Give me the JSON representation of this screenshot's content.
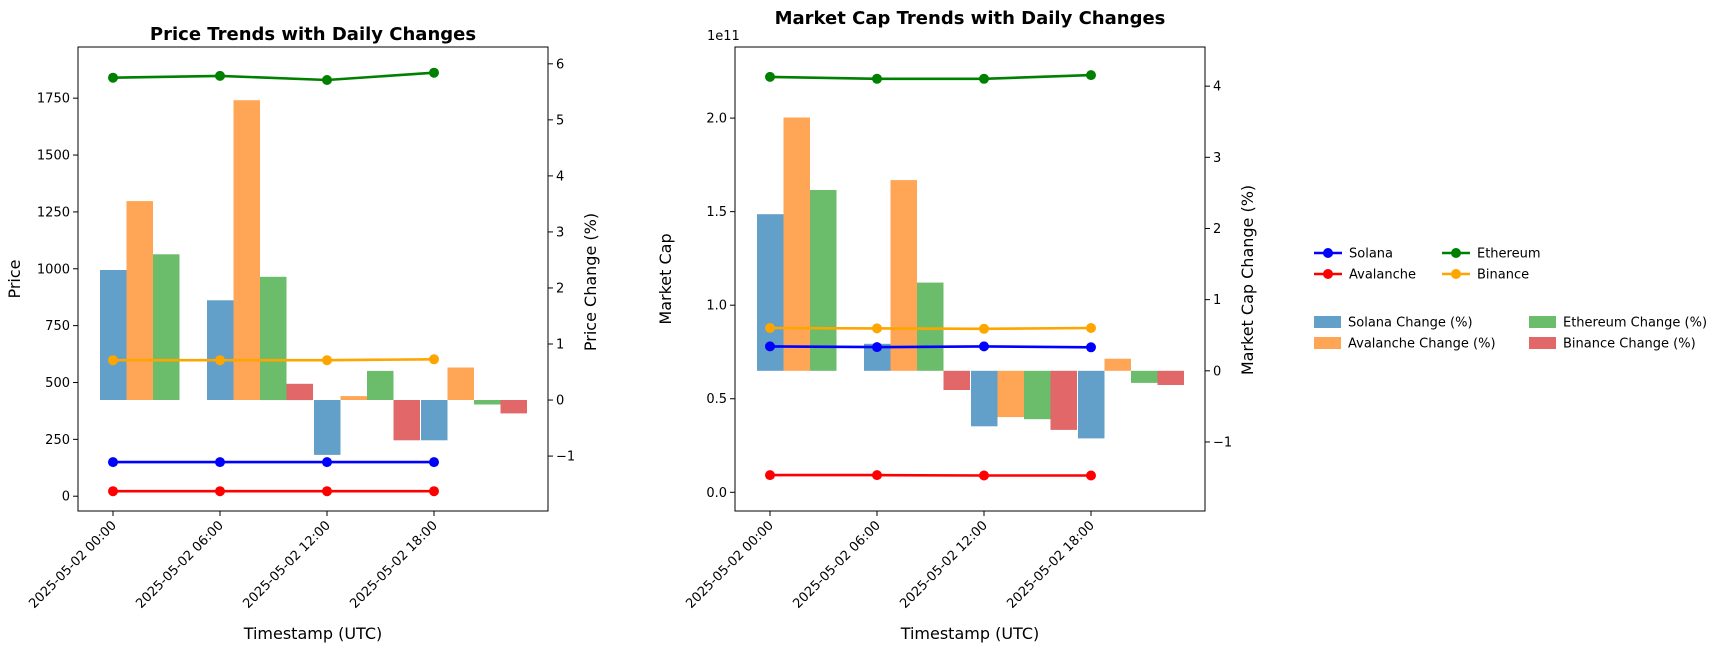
{
  "chart_data": [
    {
      "type": "line+bar",
      "title": "Price Trends with Daily Changes",
      "xlabel": "Timestamp (UTC)",
      "ylabel": "Price",
      "y2label": "Price Change (%)",
      "categories": [
        "2025-05-02 00:00",
        "2025-05-02 06:00",
        "2025-05-02 12:00",
        "2025-05-02 18:00"
      ],
      "ylim": [
        -65,
        1975
      ],
      "y2lim": [
        -1.98,
        6.3
      ],
      "yticks": [
        "0",
        "250",
        "500",
        "750",
        "1000",
        "1250",
        "1500",
        "1750"
      ],
      "y2ticks": [
        "−1",
        "0",
        "1",
        "2",
        "3",
        "4",
        "5",
        "6"
      ],
      "series": [
        {
          "name": "Solana",
          "color": "#0000ff",
          "values": [
            150,
            150,
            150,
            150
          ]
        },
        {
          "name": "Avalanche",
          "color": "#ff0000",
          "values": [
            22,
            22,
            22,
            22
          ]
        },
        {
          "name": "Ethereum",
          "color": "#008000",
          "values": [
            1840,
            1848,
            1830,
            1862
          ]
        },
        {
          "name": "Binance",
          "color": "#ffa500",
          "values": [
            598,
            598,
            598,
            602
          ]
        }
      ],
      "bar_series": [
        {
          "name": "Solana Change (%)",
          "color": "#1f77b4",
          "values": [
            2.32,
            1.78,
            -0.98,
            -0.72
          ]
        },
        {
          "name": "Avalanche Change (%)",
          "color": "#ff7f0e",
          "values": [
            3.55,
            5.35,
            0.07,
            0.58
          ]
        },
        {
          "name": "Ethereum Change (%)",
          "color": "#2ca02c",
          "values": [
            2.6,
            2.2,
            0.52,
            -0.08
          ]
        },
        {
          "name": "Binance Change (%)",
          "color": "#d62728",
          "values": [
            null,
            0.29,
            -0.72,
            -0.24
          ]
        }
      ]
    },
    {
      "type": "line+bar",
      "title": "Market Cap Trends with Daily Changes",
      "xlabel": "Timestamp (UTC)",
      "ylabel": "Market Cap",
      "y2label": "Market Cap Change (%)",
      "offset_text": "1e11",
      "categories": [
        "2025-05-02 00:00",
        "2025-05-02 06:00",
        "2025-05-02 12:00",
        "2025-05-02 18:00"
      ],
      "ylim": [
        -0.1,
        2.38
      ],
      "y2lim": [
        -1.97,
        4.55
      ],
      "yticks": [
        "0.0",
        "0.5",
        "1.0",
        "1.5",
        "2.0"
      ],
      "y2ticks": [
        "−1",
        "0",
        "1",
        "2",
        "3",
        "4"
      ],
      "series": [
        {
          "name": "Solana",
          "color": "#0000ff",
          "values": [
            0.78,
            0.776,
            0.78,
            0.775
          ]
        },
        {
          "name": "Avalanche",
          "color": "#ff0000",
          "values": [
            0.092,
            0.092,
            0.09,
            0.09
          ]
        },
        {
          "name": "Ethereum",
          "color": "#008000",
          "values": [
            2.22,
            2.21,
            2.21,
            2.23
          ]
        },
        {
          "name": "Binance",
          "color": "#ffa500",
          "values": [
            0.878,
            0.876,
            0.874,
            0.878
          ]
        }
      ],
      "bar_series": [
        {
          "name": "Solana Change (%)",
          "color": "#1f77b4",
          "values": [
            2.2,
            0.38,
            -0.78,
            -0.95
          ]
        },
        {
          "name": "Avalanche Change (%)",
          "color": "#ff7f0e",
          "values": [
            3.56,
            2.68,
            -0.65,
            0.17
          ]
        },
        {
          "name": "Ethereum Change (%)",
          "color": "#2ca02c",
          "values": [
            2.54,
            1.24,
            -0.68,
            -0.17
          ]
        },
        {
          "name": "Binance Change (%)",
          "color": "#d62728",
          "values": [
            null,
            -0.27,
            -0.83,
            -0.2
          ]
        }
      ]
    }
  ],
  "legend": {
    "placement": "right",
    "line_entries": [
      "Solana",
      "Ethereum",
      "Avalanche",
      "Binance"
    ],
    "bar_entries": [
      "Solana Change (%)",
      "Ethereum Change (%)",
      "Avalanche Change (%)",
      "Binance Change (%)"
    ]
  }
}
